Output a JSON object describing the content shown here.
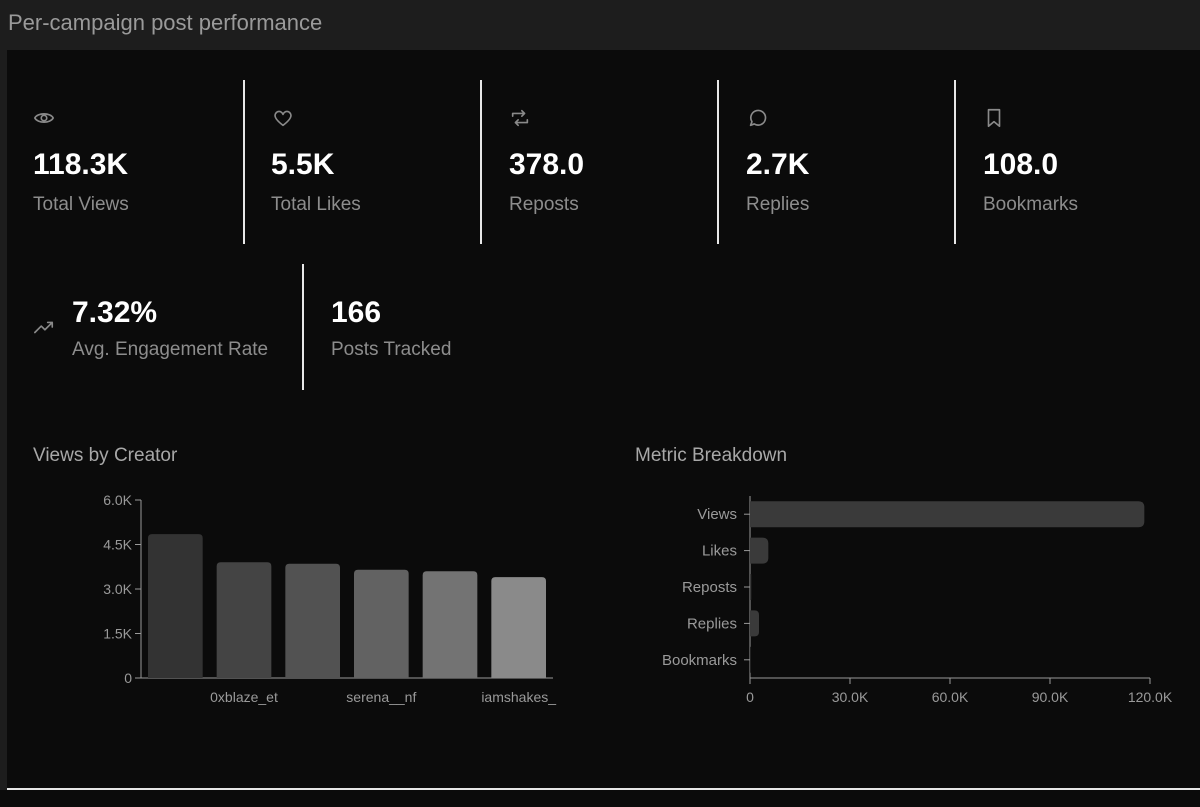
{
  "page": {
    "title": "Per-campaign post performance"
  },
  "stats": [
    {
      "icon": "eye-icon",
      "value": "118.3K",
      "label": "Total Views"
    },
    {
      "icon": "heart-icon",
      "value": "5.5K",
      "label": "Total Likes"
    },
    {
      "icon": "repost-icon",
      "value": "378.0",
      "label": "Reposts"
    },
    {
      "icon": "reply-icon",
      "value": "2.7K",
      "label": "Replies"
    },
    {
      "icon": "bookmark-icon",
      "value": "108.0",
      "label": "Bookmarks"
    },
    {
      "icon": "trending-up-icon",
      "value": "7.32%",
      "label": "Avg. Engagement Rate"
    },
    {
      "icon": "",
      "value": "166",
      "label": "Posts Tracked"
    }
  ],
  "chart_data": [
    {
      "type": "bar",
      "title": "Views by Creator",
      "orientation": "vertical",
      "categories": [
        "",
        "0xblaze_et",
        "",
        "serena__nf",
        "",
        "iamshakes_"
      ],
      "values": [
        4850,
        3900,
        3850,
        3650,
        3600,
        3400
      ],
      "yticks": [
        "0",
        "1.5K",
        "3.0K",
        "4.5K",
        "6.0K"
      ],
      "ytick_values": [
        0,
        1500,
        3000,
        4500,
        6000
      ],
      "ylim": [
        0,
        6000
      ],
      "colors": [
        "#333333",
        "#444444",
        "#525252",
        "#626262",
        "#737373",
        "#8a8a8a"
      ],
      "grid": false
    },
    {
      "type": "bar",
      "title": "Metric Breakdown",
      "orientation": "horizontal",
      "categories": [
        "Views",
        "Likes",
        "Reposts",
        "Replies",
        "Bookmarks"
      ],
      "values": [
        118300,
        5500,
        378,
        2700,
        108
      ],
      "xticks": [
        "0",
        "30.0K",
        "60.0K",
        "90.0K",
        "120.0K"
      ],
      "xtick_values": [
        0,
        30000,
        60000,
        90000,
        120000
      ],
      "xlim": [
        0,
        120000
      ],
      "color": "#3a3a3a",
      "grid": false
    }
  ],
  "colors": {
    "panel": "#0b0b0b",
    "frame": "#1d1d1d",
    "axis": "#9a9a9a",
    "divider": "#e8e8e8"
  }
}
